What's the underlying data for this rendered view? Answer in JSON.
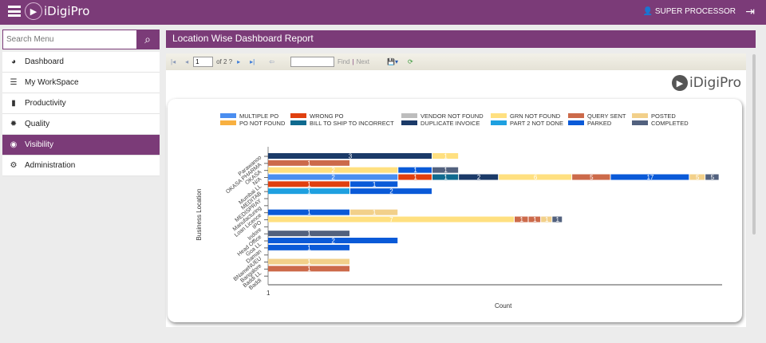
{
  "header": {
    "brand": "iDigiPro",
    "user": "SUPER PROCESSOR"
  },
  "sidebar": {
    "search_placeholder": "Search Menu",
    "items": [
      {
        "label": "Dashboard",
        "icon": "dashboard-icon"
      },
      {
        "label": "My WorkSpace",
        "icon": "workspace-icon"
      },
      {
        "label": "Productivity",
        "icon": "bar-chart-icon"
      },
      {
        "label": "Quality",
        "icon": "gear-icon"
      },
      {
        "label": "Visibility",
        "icon": "eye-icon",
        "active": true
      },
      {
        "label": "Administration",
        "icon": "gears-icon"
      }
    ]
  },
  "main": {
    "title": "Location Wise Dashboard Report",
    "toolbar": {
      "page": "1",
      "of": "of 2 ?",
      "find": "Find",
      "sep": "|",
      "next": "Next"
    },
    "brand": "iDigiPro"
  },
  "chart_data": {
    "type": "bar",
    "orientation": "horizontal",
    "stacked": true,
    "x_scale": "log",
    "xlabel": "Count",
    "ylabel": "Business Location",
    "x_tick_labels": [
      "1"
    ],
    "legend_position": "top",
    "legend": [
      {
        "name": "MULTIPLE PO",
        "color": "#4a8ef0"
      },
      {
        "name": "WRONG PO",
        "color": "#e0400f"
      },
      {
        "name": "VENDOR NOT FOUND",
        "color": "#bdbdbd"
      },
      {
        "name": "GRN NOT FOUND",
        "color": "#ffe080"
      },
      {
        "name": "QUERY SENT",
        "color": "#cc6a4a"
      },
      {
        "name": "POSTED",
        "color": "#f2d08a"
      },
      {
        "name": "PO NOT FOUND",
        "color": "#f8b040"
      },
      {
        "name": "BILL TO SHIP TO INCORRECT",
        "color": "#0f6a8f"
      },
      {
        "name": "DUPLICATE INVOICE",
        "color": "#1b3a68"
      },
      {
        "name": "PART 2 NOT DONE",
        "color": "#1ea0e0"
      },
      {
        "name": "PARKED",
        "color": "#0a5ad8"
      },
      {
        "name": "COMPLETED",
        "color": "#52617e"
      }
    ],
    "categories": [
      "Parawanoo",
      "OKASA PHARMA",
      "OKASA",
      "N/A",
      "Mumbai LL",
      "MEDITAB",
      "MEDISPRAY",
      "Manufacturing",
      "Loan Licence",
      "IPO",
      "Indore",
      "Head Office",
      "Goa LL",
      "Daman",
      "BNameNUEU",
      "Bangalore",
      "Baddi LL",
      "Baddi"
    ],
    "rows": [
      [
        {
          "s": "DUPLICATE INVOICE",
          "v": 3
        },
        {
          "s": "GRN NOT FOUND",
          "v": 1
        }
      ],
      [
        {
          "s": "QUERY SENT",
          "v": 1
        }
      ],
      [
        {
          "s": "GRN NOT FOUND",
          "v": 2
        },
        {
          "s": "PARKED",
          "v": 1
        },
        {
          "s": "COMPLETED",
          "v": 1
        }
      ],
      [
        {
          "s": "MULTIPLE PO",
          "v": 2
        },
        {
          "s": "WRONG PO",
          "v": 1
        },
        {
          "s": "BILL TO SHIP TO INCORRECT",
          "v": 1
        },
        {
          "s": "DUPLICATE INVOICE",
          "v": 2
        },
        {
          "s": "GRN NOT FOUND",
          "v": 6
        },
        {
          "s": "QUERY SENT",
          "v": 5
        },
        {
          "s": "PARKED",
          "v": 17
        },
        {
          "s": "POSTED",
          "v": 5
        },
        {
          "s": "COMPLETED",
          "v": 5
        }
      ],
      [
        {
          "s": "WRONG PO",
          "v": 1
        },
        {
          "s": "PARKED",
          "v": 1
        }
      ],
      [
        {
          "s": "PART 2 NOT DONE",
          "v": 1
        },
        {
          "s": "PARKED",
          "v": 2
        }
      ],
      [],
      [],
      [
        {
          "s": "PARKED",
          "v": 1
        },
        {
          "s": "POSTED",
          "v": 1
        }
      ],
      [
        {
          "s": "GRN NOT FOUND",
          "v": 7
        },
        {
          "s": "QUERY SENT",
          "v": 1
        },
        {
          "s": "QUERY SENT",
          "v": 1
        },
        {
          "s": "POSTED",
          "v": 1
        },
        {
          "s": "COMPLETED",
          "v": 1
        }
      ],
      [],
      [
        {
          "s": "COMPLETED",
          "v": 1
        }
      ],
      [
        {
          "s": "PARKED",
          "v": 2
        }
      ],
      [
        {
          "s": "PARKED",
          "v": 1
        }
      ],
      [],
      [
        {
          "s": "POSTED",
          "v": 1
        }
      ],
      [
        {
          "s": "QUERY SENT",
          "v": 1
        }
      ],
      []
    ]
  }
}
